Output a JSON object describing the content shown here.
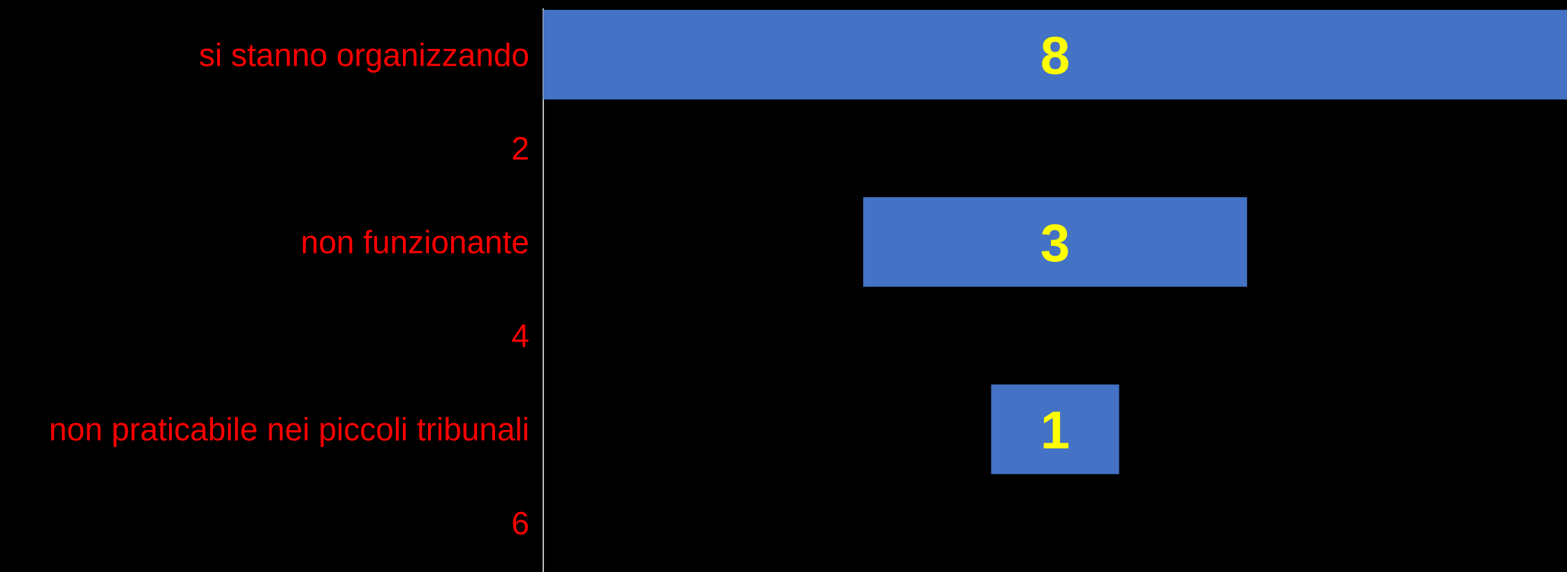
{
  "chart_data": {
    "type": "bar",
    "orientation": "horizontal",
    "alignment": "centered-funnel",
    "categories": [
      "si stanno organizzando",
      "2",
      "non funzionante",
      "4",
      "non praticabile nei piccoli tribunali",
      "6"
    ],
    "values": [
      8,
      null,
      3,
      null,
      1,
      null
    ],
    "data_labels": [
      "8",
      "",
      "3",
      "",
      "1",
      ""
    ],
    "title": "",
    "xlabel": "",
    "ylabel": "",
    "xlim": [
      0,
      8
    ],
    "grid": false,
    "legend": "none"
  },
  "colors": {
    "background": "#000000",
    "bar": "#4472C4",
    "category_label": "#FF0000",
    "value_label": "#FFFF00",
    "axis_line": "#BFBFBF"
  }
}
